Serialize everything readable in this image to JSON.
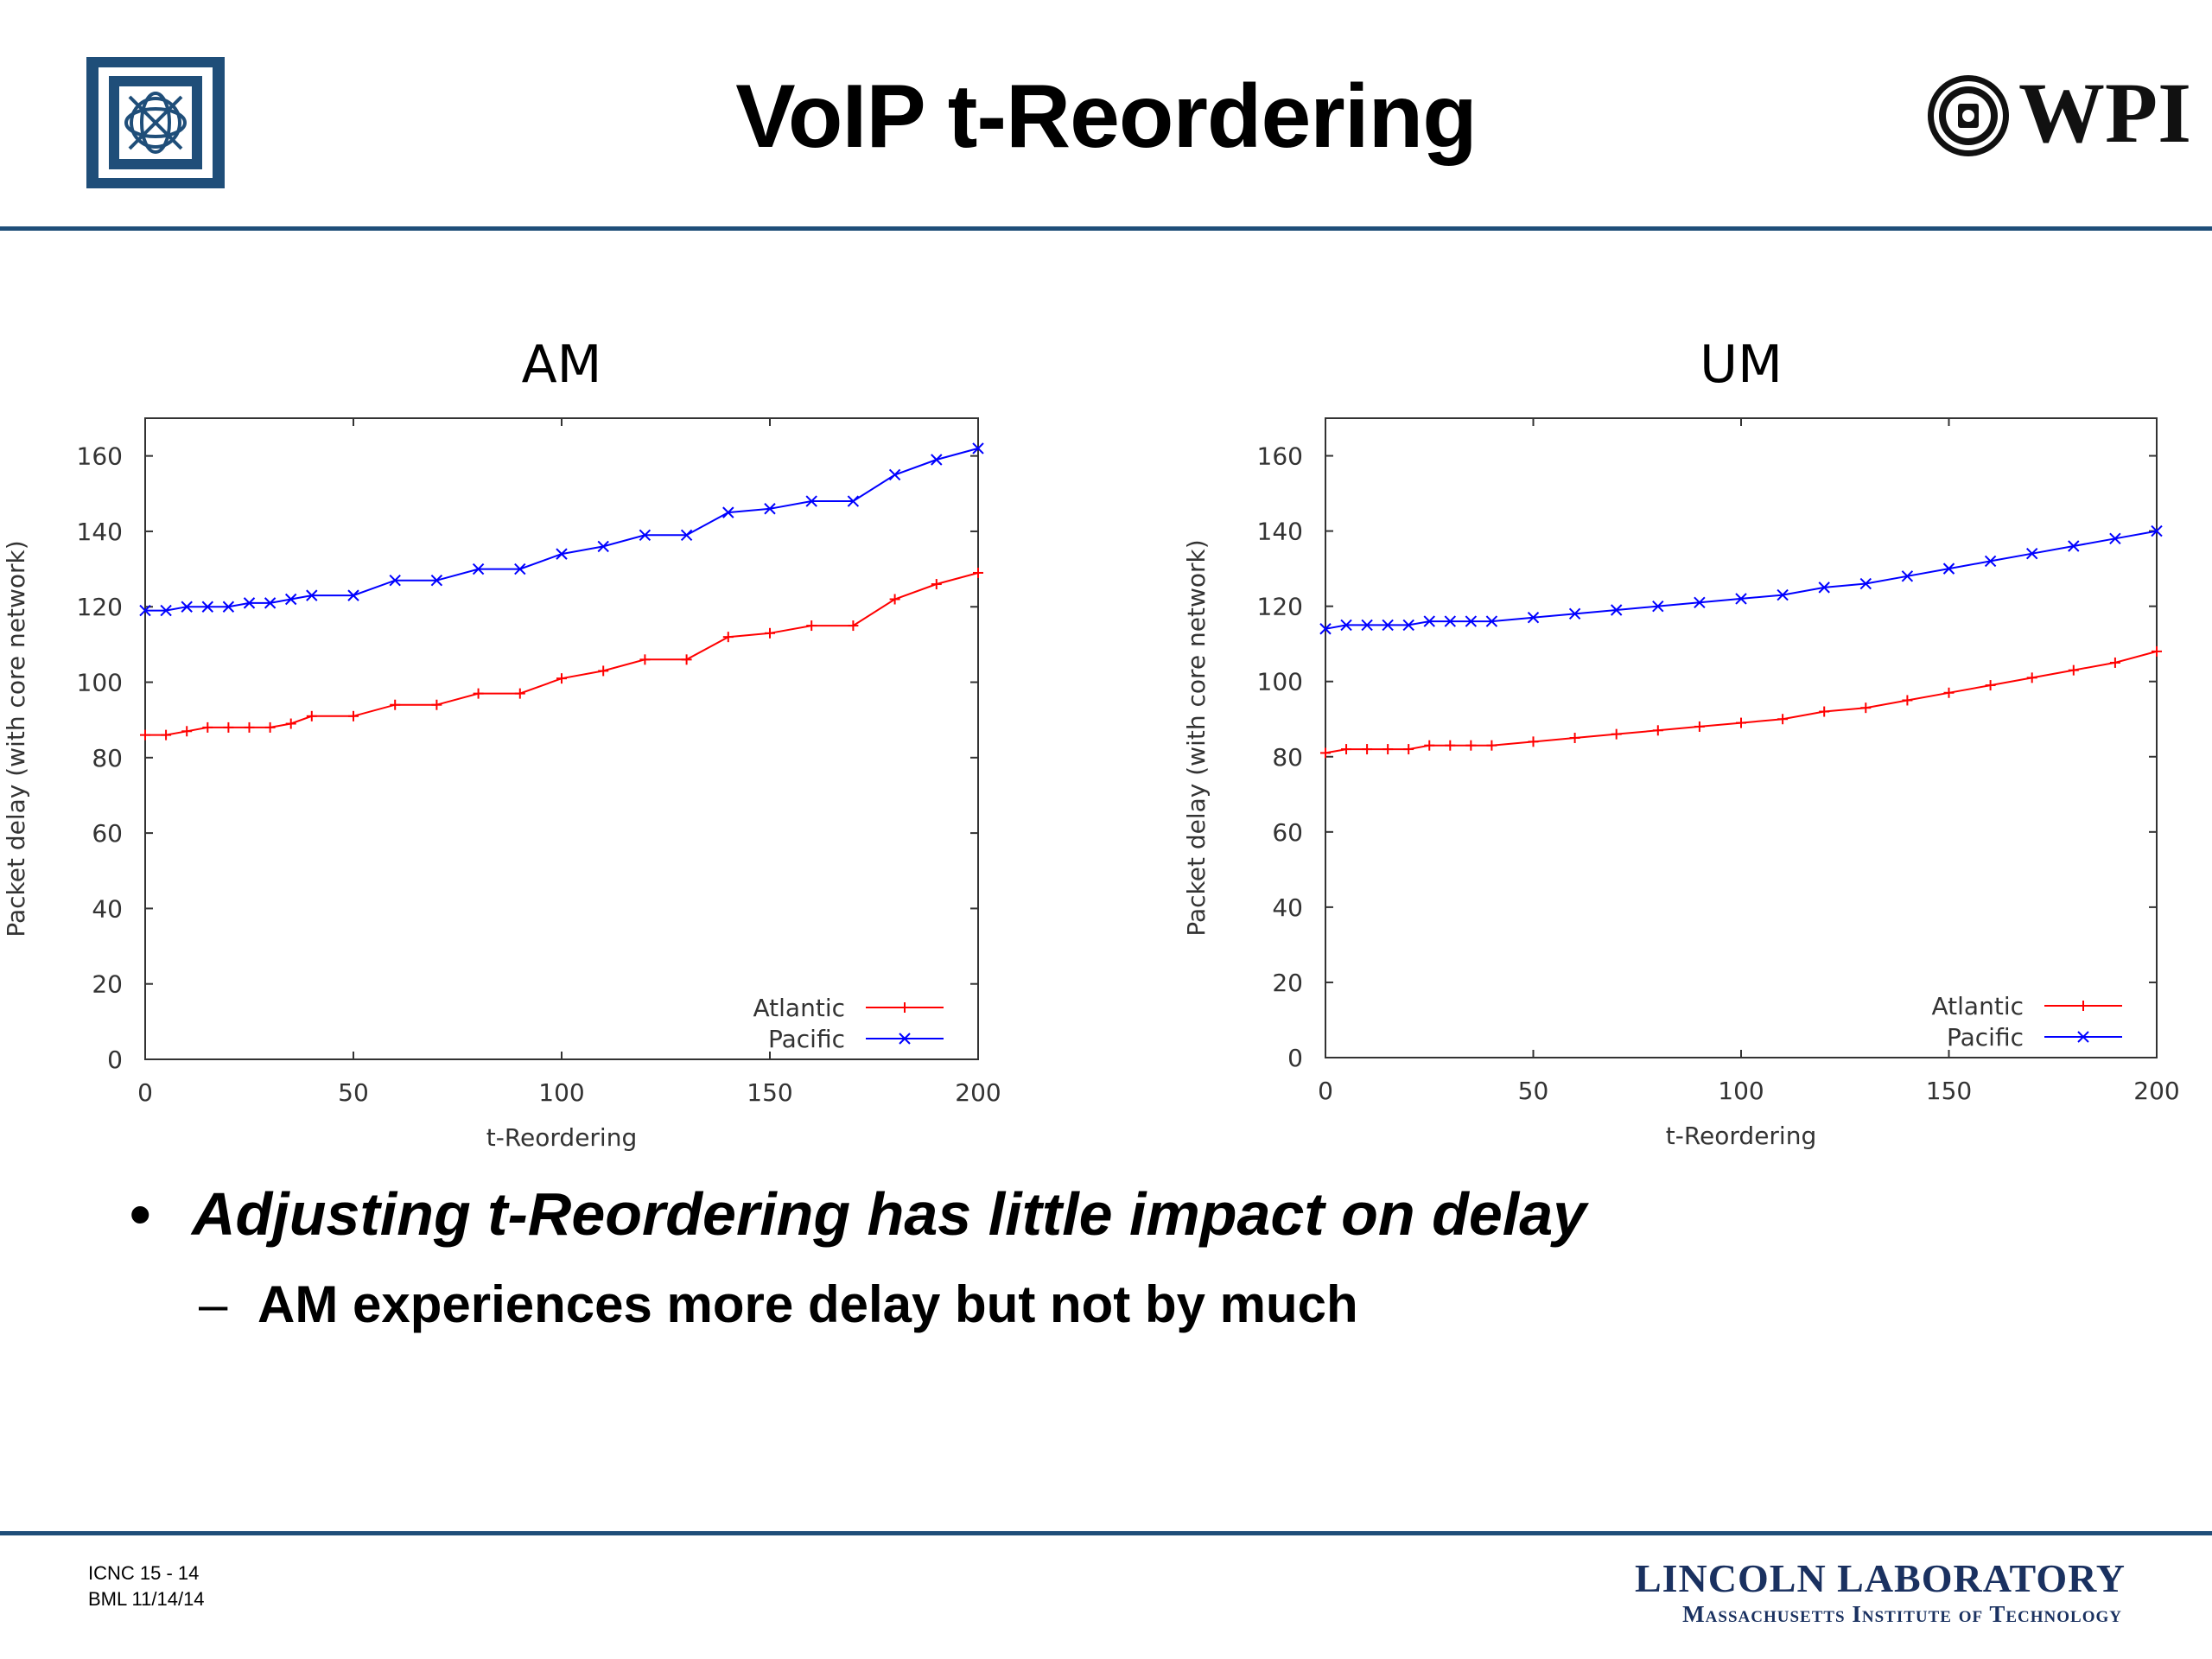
{
  "slide": {
    "title": "VoIP t-Reordering",
    "bullets": [
      {
        "marker": "•",
        "text": "Adjusting t-Reordering has little impact on delay"
      },
      {
        "marker": "–",
        "text": "AM experiences more delay but not by much"
      }
    ],
    "footer": {
      "line1": "ICNC 15 - 14",
      "line2": "BML 11/14/14",
      "lab_name": "LINCOLN LABORATORY",
      "lab_sub": "Massachusetts Institute of Technology",
      "wpi_logo": "WPI"
    },
    "colors": {
      "rule": "#1f4e79",
      "lincoln": "#1a3160",
      "mit_logo": "#1f4e79"
    }
  },
  "chart_data": [
    {
      "type": "line",
      "title": "AM",
      "xlabel": "t-Reordering",
      "ylabel": "Packet delay (with core network)",
      "xlim": [
        0,
        200
      ],
      "ylim": [
        0,
        170
      ],
      "xticks": [
        0,
        50,
        100,
        150,
        200
      ],
      "yticks": [
        0,
        20,
        40,
        60,
        80,
        100,
        120,
        140,
        160
      ],
      "grid": false,
      "legend": "bottom-right",
      "series": [
        {
          "name": "Atlantic",
          "color": "#ff0000",
          "marker": "+",
          "x": [
            0,
            5,
            10,
            15,
            20,
            25,
            30,
            35,
            40,
            50,
            60,
            70,
            80,
            90,
            100,
            110,
            120,
            130,
            140,
            150,
            160,
            170,
            180,
            190,
            200
          ],
          "y": [
            86,
            86,
            87,
            88,
            88,
            88,
            88,
            89,
            91,
            91,
            94,
            94,
            97,
            97,
            101,
            103,
            106,
            106,
            112,
            113,
            115,
            115,
            122,
            126,
            129
          ]
        },
        {
          "name": "Pacific",
          "color": "#0000ff",
          "marker": "x",
          "x": [
            0,
            5,
            10,
            15,
            20,
            25,
            30,
            35,
            40,
            50,
            60,
            70,
            80,
            90,
            100,
            110,
            120,
            130,
            140,
            150,
            160,
            170,
            180,
            190,
            200
          ],
          "y": [
            119,
            119,
            120,
            120,
            120,
            121,
            121,
            122,
            123,
            123,
            127,
            127,
            130,
            130,
            134,
            136,
            139,
            139,
            145,
            146,
            148,
            148,
            155,
            159,
            162
          ]
        }
      ]
    },
    {
      "type": "line",
      "title": "UM",
      "xlabel": "t-Reordering",
      "ylabel": "Packet delay (with core network)",
      "xlim": [
        0,
        200
      ],
      "ylim": [
        0,
        170
      ],
      "xticks": [
        0,
        50,
        100,
        150,
        200
      ],
      "yticks": [
        0,
        20,
        40,
        60,
        80,
        100,
        120,
        140,
        160
      ],
      "grid": false,
      "legend": "bottom-right",
      "series": [
        {
          "name": "Atlantic",
          "color": "#ff0000",
          "marker": "+",
          "x": [
            0,
            5,
            10,
            15,
            20,
            25,
            30,
            35,
            40,
            50,
            60,
            70,
            80,
            90,
            100,
            110,
            120,
            130,
            140,
            150,
            160,
            170,
            180,
            190,
            200
          ],
          "y": [
            81,
            82,
            82,
            82,
            82,
            83,
            83,
            83,
            83,
            84,
            85,
            86,
            87,
            88,
            89,
            90,
            92,
            93,
            95,
            97,
            99,
            101,
            103,
            105,
            108
          ]
        },
        {
          "name": "Pacific",
          "color": "#0000ff",
          "marker": "x",
          "x": [
            0,
            5,
            10,
            15,
            20,
            25,
            30,
            35,
            40,
            50,
            60,
            70,
            80,
            90,
            100,
            110,
            120,
            130,
            140,
            150,
            160,
            170,
            180,
            190,
            200
          ],
          "y": [
            114,
            115,
            115,
            115,
            115,
            116,
            116,
            116,
            116,
            117,
            118,
            119,
            120,
            121,
            122,
            123,
            125,
            126,
            128,
            130,
            132,
            134,
            136,
            138,
            140
          ]
        }
      ]
    }
  ]
}
